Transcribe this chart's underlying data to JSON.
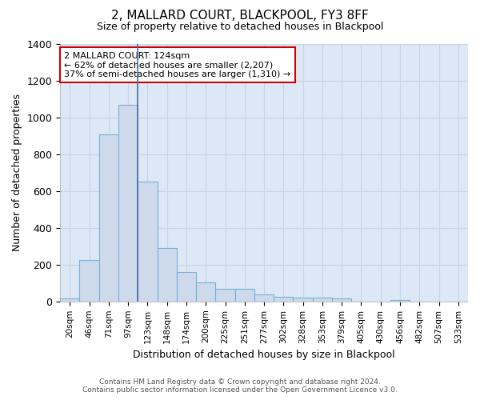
{
  "title": "2, MALLARD COURT, BLACKPOOL, FY3 8FF",
  "subtitle": "Size of property relative to detached houses in Blackpool",
  "xlabel": "Distribution of detached houses by size in Blackpool",
  "ylabel": "Number of detached properties",
  "footer_line1": "Contains HM Land Registry data © Crown copyright and database right 2024.",
  "footer_line2": "Contains public sector information licensed under the Open Government Licence v3.0.",
  "categories": [
    "20sqm",
    "46sqm",
    "71sqm",
    "97sqm",
    "123sqm",
    "148sqm",
    "174sqm",
    "200sqm",
    "225sqm",
    "251sqm",
    "277sqm",
    "302sqm",
    "328sqm",
    "353sqm",
    "379sqm",
    "405sqm",
    "430sqm",
    "456sqm",
    "482sqm",
    "507sqm",
    "533sqm"
  ],
  "values": [
    15,
    225,
    910,
    1070,
    650,
    290,
    160,
    105,
    70,
    70,
    40,
    25,
    20,
    20,
    15,
    0,
    0,
    10,
    0,
    0,
    0
  ],
  "bar_color": "#ccdaeb",
  "bar_edge_color": "#7aafd4",
  "grid_color": "#c8d4e8",
  "background_color": "#dce8f5",
  "figure_background": "#ffffff",
  "marker_bar_index": 4,
  "marker_line_color": "#4a6e9a",
  "annotation_text": "2 MALLARD COURT: 124sqm\n← 62% of detached houses are smaller (2,207)\n37% of semi-detached houses are larger (1,310) →",
  "annotation_box_color": "#ffffff",
  "annotation_box_edge_color": "#cc0000",
  "ylim": [
    0,
    1400
  ],
  "yticks": [
    0,
    200,
    400,
    600,
    800,
    1000,
    1200,
    1400
  ]
}
